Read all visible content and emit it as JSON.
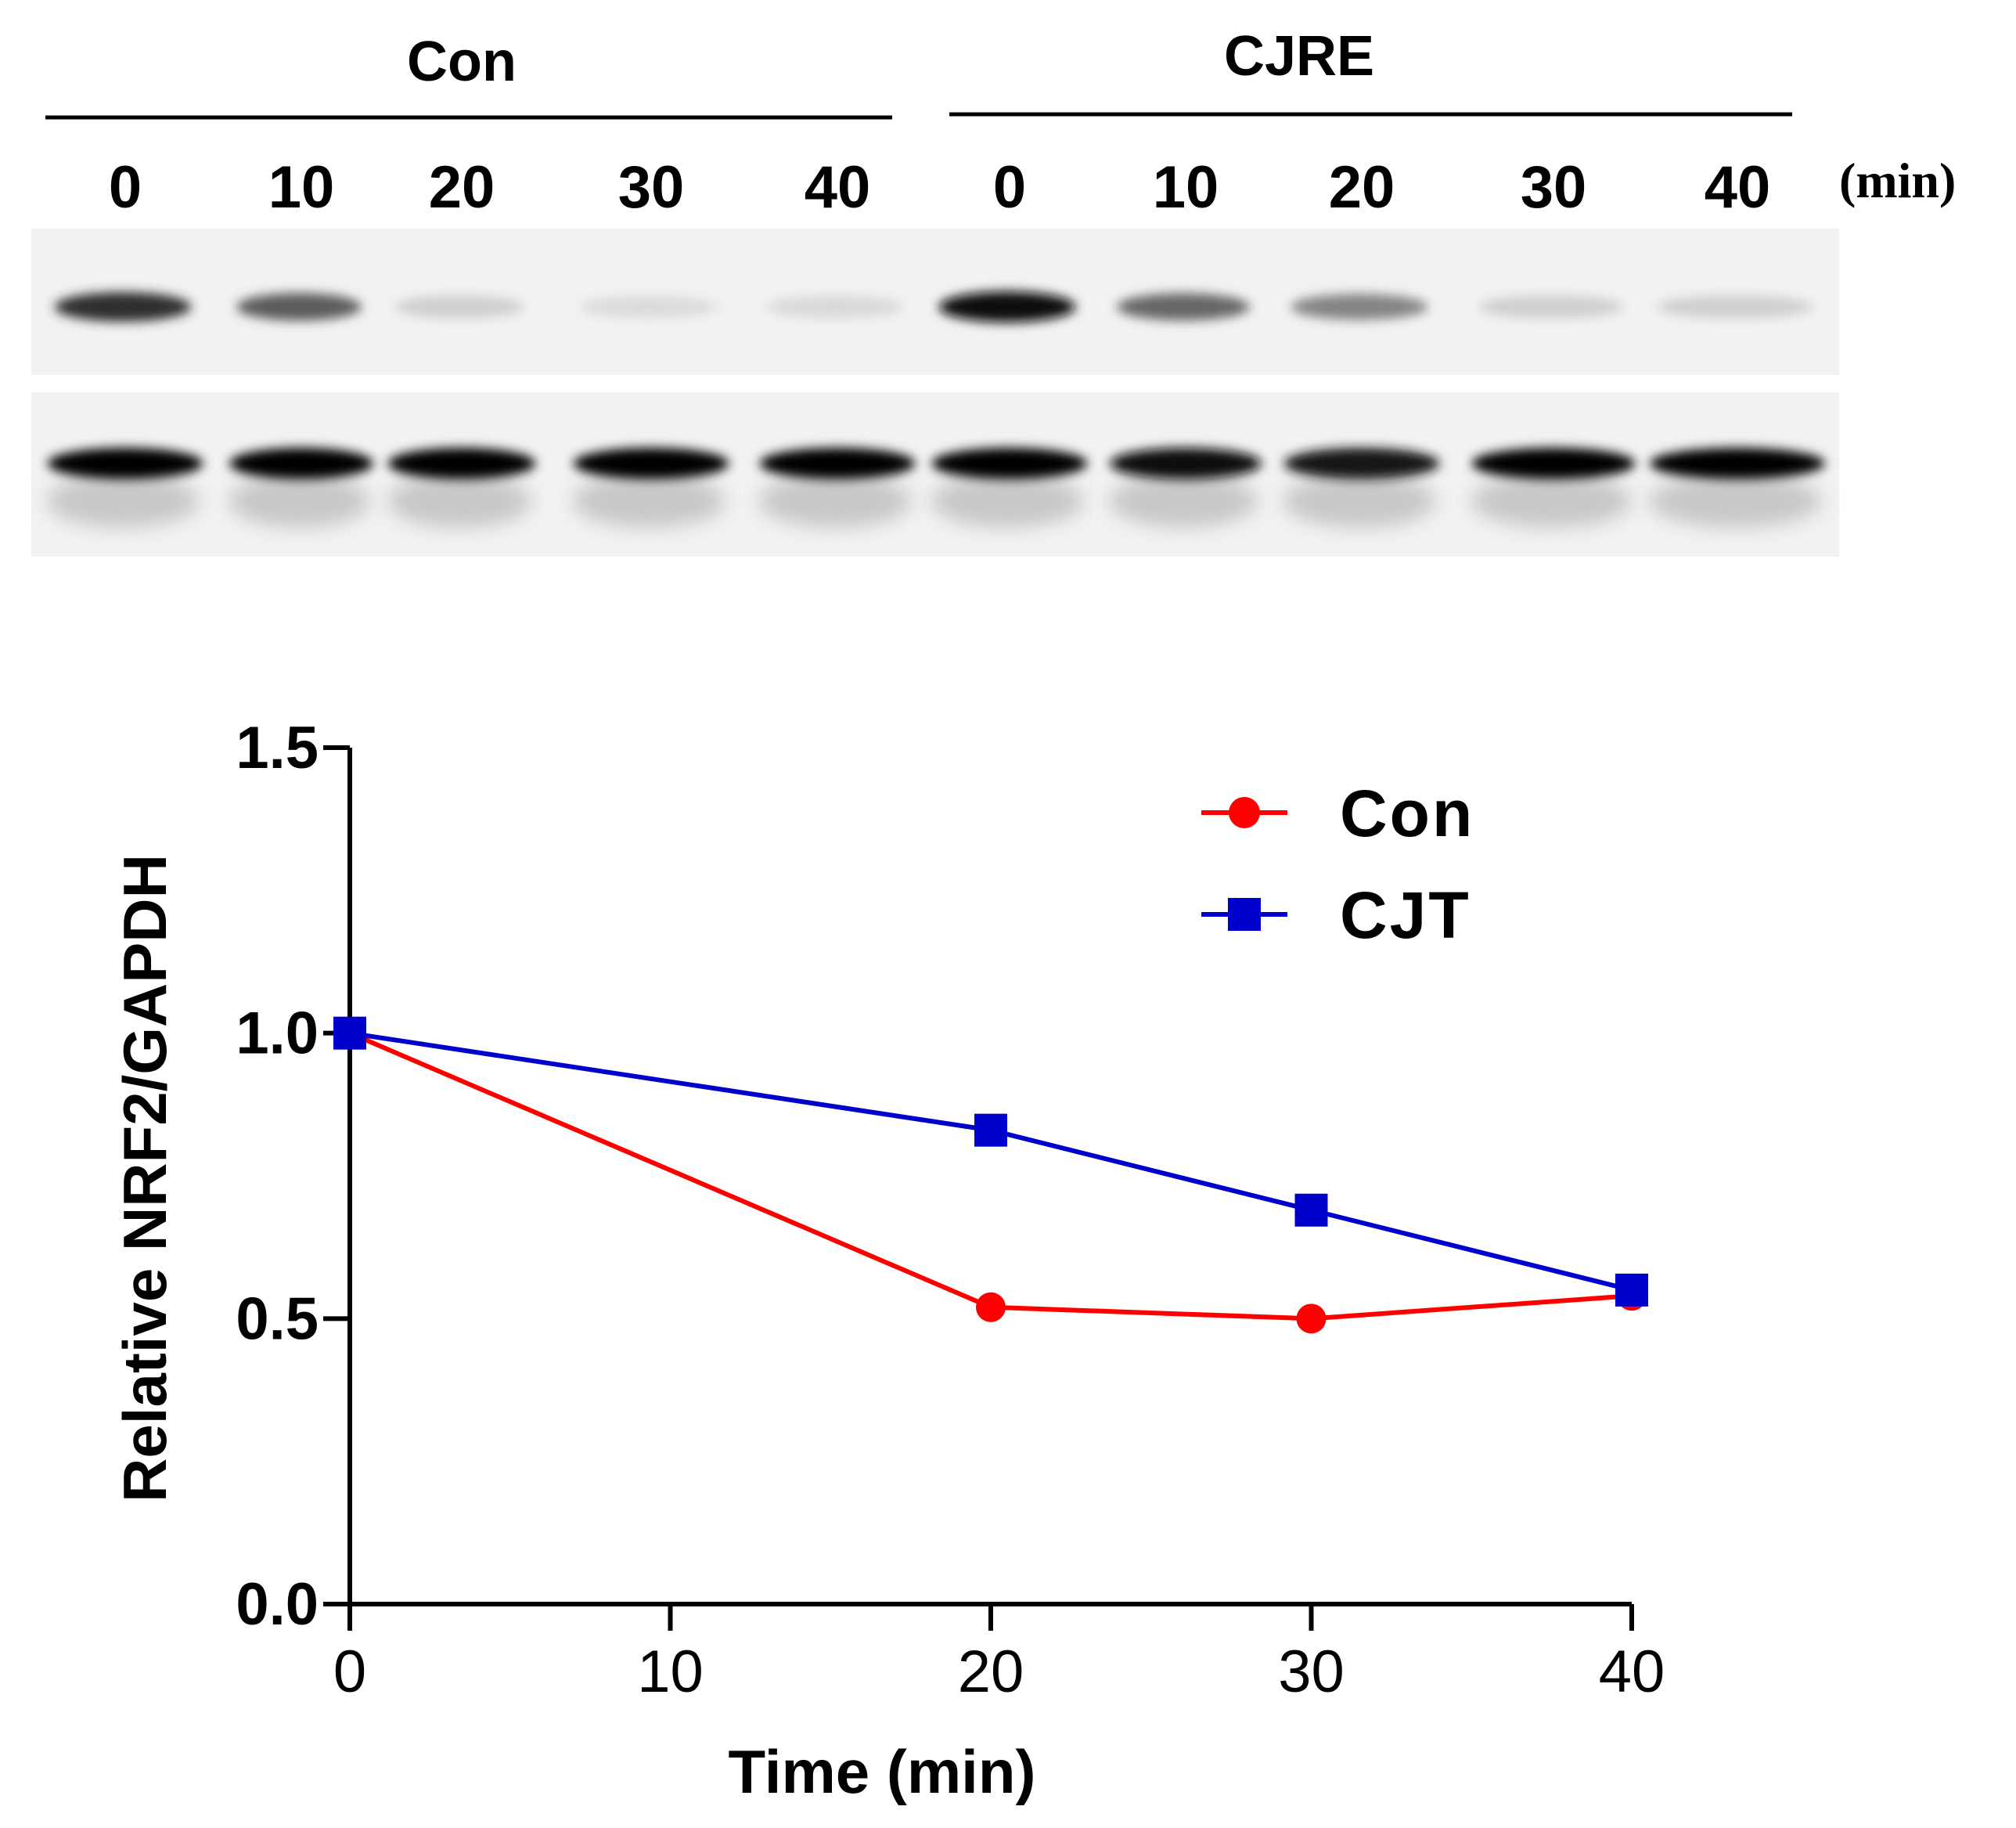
{
  "blot": {
    "group_labels": [
      "Con",
      "CJRE"
    ],
    "lane_labels": [
      "0",
      "10",
      "20",
      "30",
      "40",
      "0",
      "10",
      "20",
      "30",
      "40"
    ],
    "unit_label": "(min)",
    "top_band_intensity": [
      0.82,
      0.62,
      0.12,
      0.07,
      0.08,
      0.95,
      0.58,
      0.45,
      0.12,
      0.12
    ],
    "bottom_band_intensity": [
      1.0,
      1.0,
      1.0,
      1.0,
      1.0,
      1.0,
      0.96,
      0.92,
      1.0,
      1.0
    ]
  },
  "chart_data": {
    "type": "line",
    "xlabel": "Time (min)",
    "ylabel": "Relative NRF2/GAPDH",
    "xlim": [
      0,
      40
    ],
    "ylim": [
      0,
      1.5
    ],
    "x_ticks": [
      "0",
      "10",
      "20",
      "30",
      "40"
    ],
    "y_ticks": [
      "0.0",
      "0.5",
      "1.0",
      "1.5"
    ],
    "grid": false,
    "legend_position": "top-right",
    "series": [
      {
        "name": "Con",
        "color": "#ff0000",
        "marker": "circle",
        "x": [
          0,
          20,
          30,
          40
        ],
        "y": [
          1.0,
          0.52,
          0.5,
          0.54
        ]
      },
      {
        "name": "CJT",
        "color": "#0000cc",
        "marker": "square",
        "x": [
          0,
          20,
          30,
          40
        ],
        "y": [
          1.0,
          0.83,
          0.69,
          0.55
        ]
      }
    ]
  }
}
